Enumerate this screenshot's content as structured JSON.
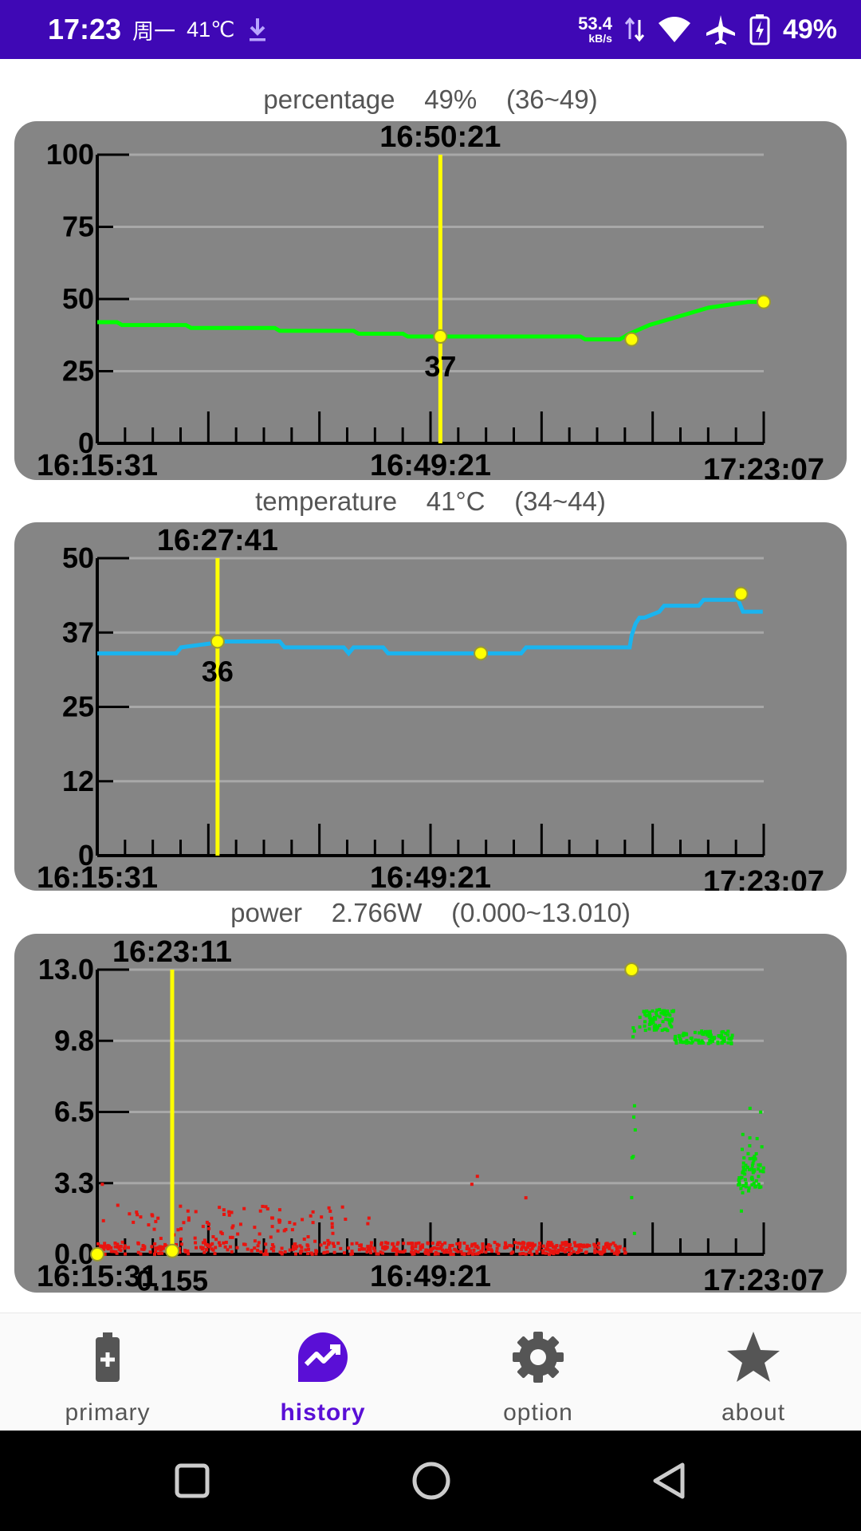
{
  "status_bar": {
    "time": "17:23",
    "date": "周一",
    "temperature": "41℃",
    "net_speed_value": "53.4",
    "net_speed_unit": "kB/s",
    "battery": "49%",
    "icons": [
      "download-icon",
      "data-arrows-icon",
      "wifi-icon",
      "airplane-icon",
      "battery-charging-icon"
    ],
    "background_color": "#3f08b5"
  },
  "charts": [
    {
      "label": "percentage",
      "value": "49%",
      "range": "(36~49)",
      "cursor_time": "16:50:21",
      "cursor_value": "37"
    },
    {
      "label": "temperature",
      "value": "41°C",
      "range": "(34~44)",
      "cursor_time": "16:27:41",
      "cursor_value": "36"
    },
    {
      "label": "power",
      "value": "2.766W",
      "range": "(0.000~13.010)",
      "cursor_time": "16:23:11",
      "cursor_value": "0.155"
    }
  ],
  "chart_data": [
    {
      "type": "line",
      "x_tick_labels": [
        "16:15:31",
        "16:49:21",
        "17:23:07"
      ],
      "y_tick_labels": [
        "100",
        "75",
        "50",
        "25",
        "0"
      ],
      "ylim": [
        0,
        100
      ],
      "x_range_minutes": [
        0,
        67.6
      ],
      "series_color": "#00ff00",
      "series": [
        {
          "x": [
            0,
            2,
            2.5,
            9,
            9.5,
            18,
            18.5,
            26,
            26.5,
            31,
            31.5,
            38,
            38.5,
            49,
            49.5,
            53,
            54,
            56,
            58,
            60,
            62,
            64,
            66,
            67.6
          ],
          "y": [
            42,
            42,
            41,
            41,
            40,
            40,
            39,
            39,
            38,
            38,
            37,
            37,
            37,
            37,
            36,
            36,
            38,
            41,
            43,
            45,
            47,
            48,
            49,
            49
          ]
        }
      ],
      "cursor_x": 34.8,
      "cursor_y": 37,
      "markers": [
        {
          "x": 34.8,
          "y": 37
        },
        {
          "x": 54.2,
          "y": 36
        },
        {
          "x": 67.6,
          "y": 49
        }
      ]
    },
    {
      "type": "line",
      "x_tick_labels": [
        "16:15:31",
        "16:49:21",
        "17:23:07"
      ],
      "y_tick_labels": [
        "50",
        "37",
        "25",
        "12",
        "0"
      ],
      "ylim": [
        0,
        50
      ],
      "x_range_minutes": [
        0,
        67.6
      ],
      "series_color": "#1ab4ef",
      "series": [
        {
          "x": [
            0,
            1.5,
            8,
            8.5,
            13,
            18.5,
            19,
            25,
            25.5,
            26,
            29,
            29.5,
            38,
            38.5,
            43,
            43.5,
            54,
            54.2,
            54.6,
            55,
            55.5,
            57,
            57.5,
            61,
            61.5,
            65,
            65.5,
            67.5
          ],
          "y": [
            34,
            34,
            34,
            35,
            36,
            36,
            35,
            35,
            34,
            35,
            35,
            34,
            34,
            34,
            34,
            35,
            35,
            37,
            39,
            40,
            40,
            41,
            42,
            42,
            43,
            43,
            41,
            41
          ]
        }
      ],
      "cursor_x": 12.2,
      "cursor_y": 36,
      "markers": [
        {
          "x": 12.2,
          "y": 36
        },
        {
          "x": 38.9,
          "y": 34
        },
        {
          "x": 65.3,
          "y": 44
        }
      ]
    },
    {
      "type": "scatter",
      "x_tick_labels": [
        "16:15:31",
        "16:49:21",
        "17:23:07"
      ],
      "y_tick_labels": [
        "13.0",
        "9.8",
        "6.5",
        "3.3",
        "0.0"
      ],
      "ylim": [
        0,
        13
      ],
      "x_range_minutes": [
        0,
        67.6
      ],
      "series_colors": [
        "#e8140f",
        "#00e000"
      ],
      "series": [
        {
          "name": "",
          "x_range": [
            0,
            53.8
          ],
          "y_range": [
            0,
            3.6
          ],
          "approximate_points": 600
        },
        {
          "name": "",
          "clusters": [
            {
              "x": [
                54.2,
                54.8
              ],
              "y": [
                0.5,
                13
              ]
            },
            {
              "x": [
                55,
                58.5
              ],
              "y": [
                10.2,
                11.2
              ]
            },
            {
              "x": [
                58.5,
                64.5
              ],
              "y": [
                9.6,
                10.2
              ]
            },
            {
              "x": [
                65,
                67.6
              ],
              "y": [
                1.8,
                6.8
              ]
            }
          ]
        }
      ],
      "cursor_x": 7.6,
      "cursor_y": 0.155,
      "markers": [
        {
          "x": 0,
          "y": 0
        },
        {
          "x": 7.6,
          "y": 0.155
        },
        {
          "x": 54.2,
          "y": 13
        }
      ]
    }
  ],
  "bottom_nav": {
    "items": [
      {
        "label": "primary",
        "icon": "battery-plus-icon",
        "active": false
      },
      {
        "label": "history",
        "icon": "chart-trend-icon",
        "active": true
      },
      {
        "label": "option",
        "icon": "gear-icon",
        "active": false
      },
      {
        "label": "about",
        "icon": "star-icon",
        "active": false
      }
    ],
    "active_color": "#5a0fd6"
  },
  "system_nav": {
    "icons": [
      "recents-square-icon",
      "home-circle-icon",
      "back-triangle-icon"
    ]
  }
}
